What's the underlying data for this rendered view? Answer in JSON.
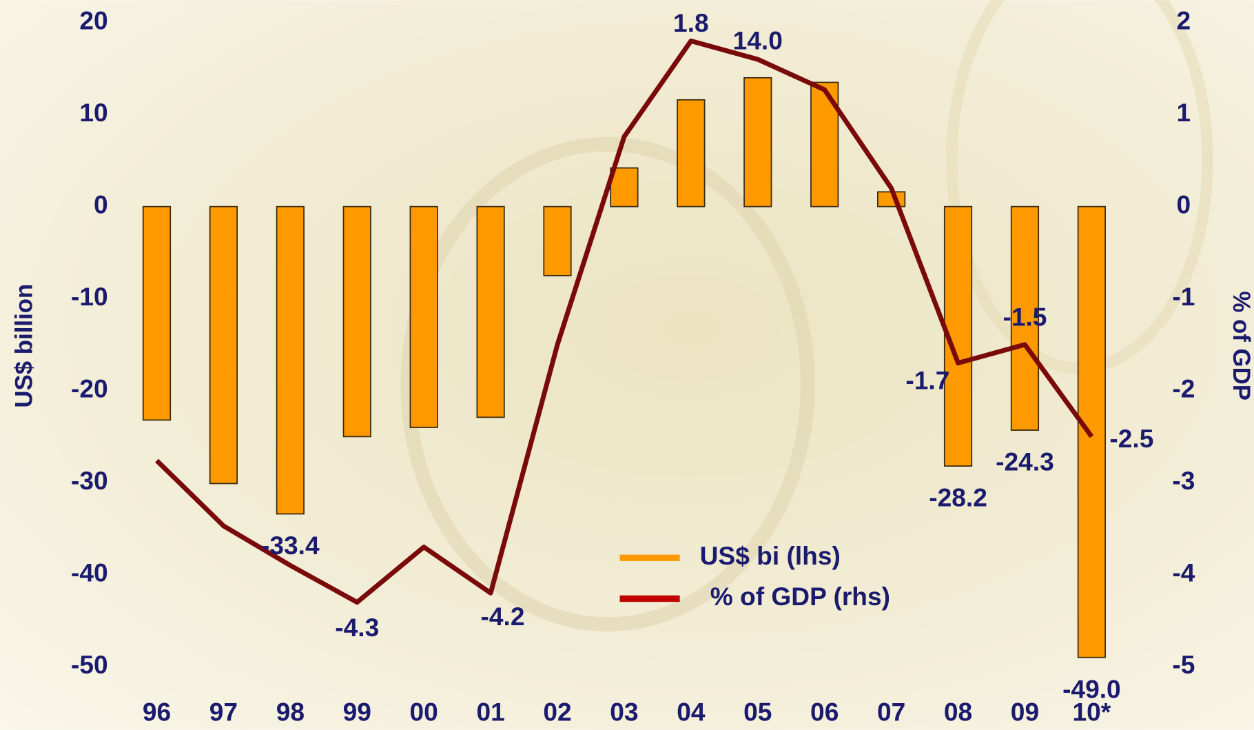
{
  "chart_data": {
    "type": "bar_line",
    "categories": [
      "96",
      "97",
      "98",
      "99",
      "00",
      "01",
      "02",
      "03",
      "04",
      "05",
      "06",
      "07",
      "08",
      "09",
      "10*"
    ],
    "series": [
      {
        "name": "US$ bi (lhs)",
        "type": "bar",
        "color": "#ff9900",
        "axis": "y",
        "values": [
          -23.2,
          -30.1,
          -33.4,
          -25.0,
          -24.0,
          -22.9,
          -7.5,
          4.2,
          11.6,
          14.0,
          13.5,
          1.6,
          -28.2,
          -24.3,
          -49.0
        ],
        "value_labels": [
          null,
          null,
          "-33.4",
          null,
          null,
          null,
          null,
          null,
          null,
          "14.0",
          null,
          null,
          "-28.2",
          "-24.3",
          "-49.0"
        ]
      },
      {
        "name": "% of GDP (rhs)",
        "type": "line",
        "color": "#7a0a0a",
        "axis": "y2",
        "values": [
          -2.76,
          -3.47,
          -3.9,
          -4.3,
          -3.7,
          -4.2,
          -1.5,
          0.76,
          1.8,
          1.6,
          1.27,
          0.2,
          -1.7,
          -1.5,
          -2.5
        ],
        "value_labels": [
          null,
          null,
          null,
          "-4.3",
          null,
          "-4.2",
          null,
          null,
          "1.8",
          null,
          null,
          null,
          "-1.7",
          "-1.5",
          "-2.5"
        ]
      }
    ],
    "y_label": "US$ billion",
    "y2_label": "% of GDP",
    "ylim": [
      -50,
      20
    ],
    "yticks": [
      -50,
      -40,
      -30,
      -20,
      -10,
      0,
      10,
      20
    ],
    "y2lim": [
      -5,
      2
    ],
    "y2ticks": [
      -5,
      -4,
      -3,
      -2,
      -1,
      0,
      1,
      2
    ],
    "grid": false,
    "legend": "bottom-center"
  }
}
